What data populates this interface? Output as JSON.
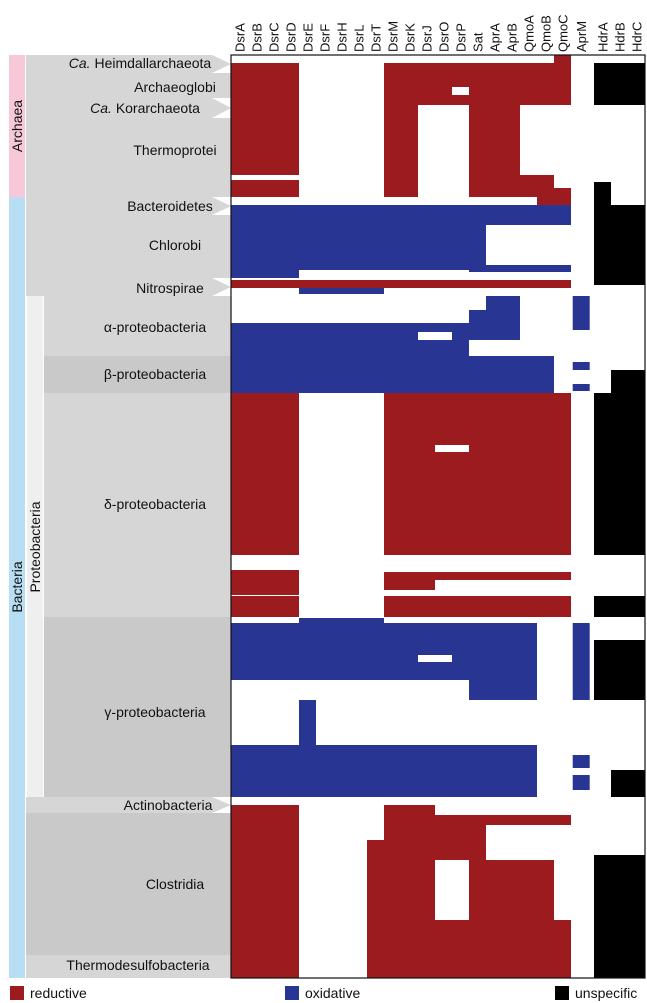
{
  "chart_data": {
    "type": "heatmap",
    "columns": [
      "DsrA",
      "DsrB",
      "DsrC",
      "DsrD",
      "DsrE",
      "DsrF",
      "DsrH",
      "DsrL",
      "DsrT",
      "DsrM",
      "DsrK",
      "DsrJ",
      "DsrO",
      "DsrP",
      "Sat",
      "AprA",
      "AprB",
      "QmoA",
      "QmoB",
      "QmoC",
      "AprM",
      "HdrA",
      "HdrB",
      "HdrC"
    ],
    "domains": [
      {
        "name": "Archaea",
        "color": "#f7c8d8"
      },
      {
        "name": "Bacteria",
        "color": "#b8def4"
      }
    ],
    "subgroup": {
      "name": "Proteobacteria",
      "color": "#efefef"
    },
    "taxa": [
      {
        "label_prefix": "Ca.",
        "label": "Heimdallarchaeota"
      },
      {
        "label_prefix": "",
        "label": "Archaeoglobi"
      },
      {
        "label_prefix": "Ca.",
        "label": "Korarchaeota"
      },
      {
        "label_prefix": "",
        "label": "Thermoprotei"
      },
      {
        "label_prefix": "",
        "label": "Bacteroidetes"
      },
      {
        "label_prefix": "",
        "label": "Chlorobi"
      },
      {
        "label_prefix": "",
        "label": "Nitrospirae"
      },
      {
        "label_prefix": "",
        "label": "α-proteobacteria"
      },
      {
        "label_prefix": "",
        "label": "β-proteobacteria"
      },
      {
        "label_prefix": "",
        "label": "δ-proteobacteria"
      },
      {
        "label_prefix": "",
        "label": "γ-proteobacteria"
      },
      {
        "label_prefix": "",
        "label": "Actinobacteria"
      },
      {
        "label_prefix": "",
        "label": "Clostridia"
      },
      {
        "label_prefix": "",
        "label": "Thermodesulfobacteria"
      }
    ],
    "legend": [
      {
        "label": "reductive",
        "color": "#9b1b1e"
      },
      {
        "label": "oxidative",
        "color": "#283593"
      },
      {
        "label": "unspecific",
        "color": "#000000"
      }
    ]
  }
}
